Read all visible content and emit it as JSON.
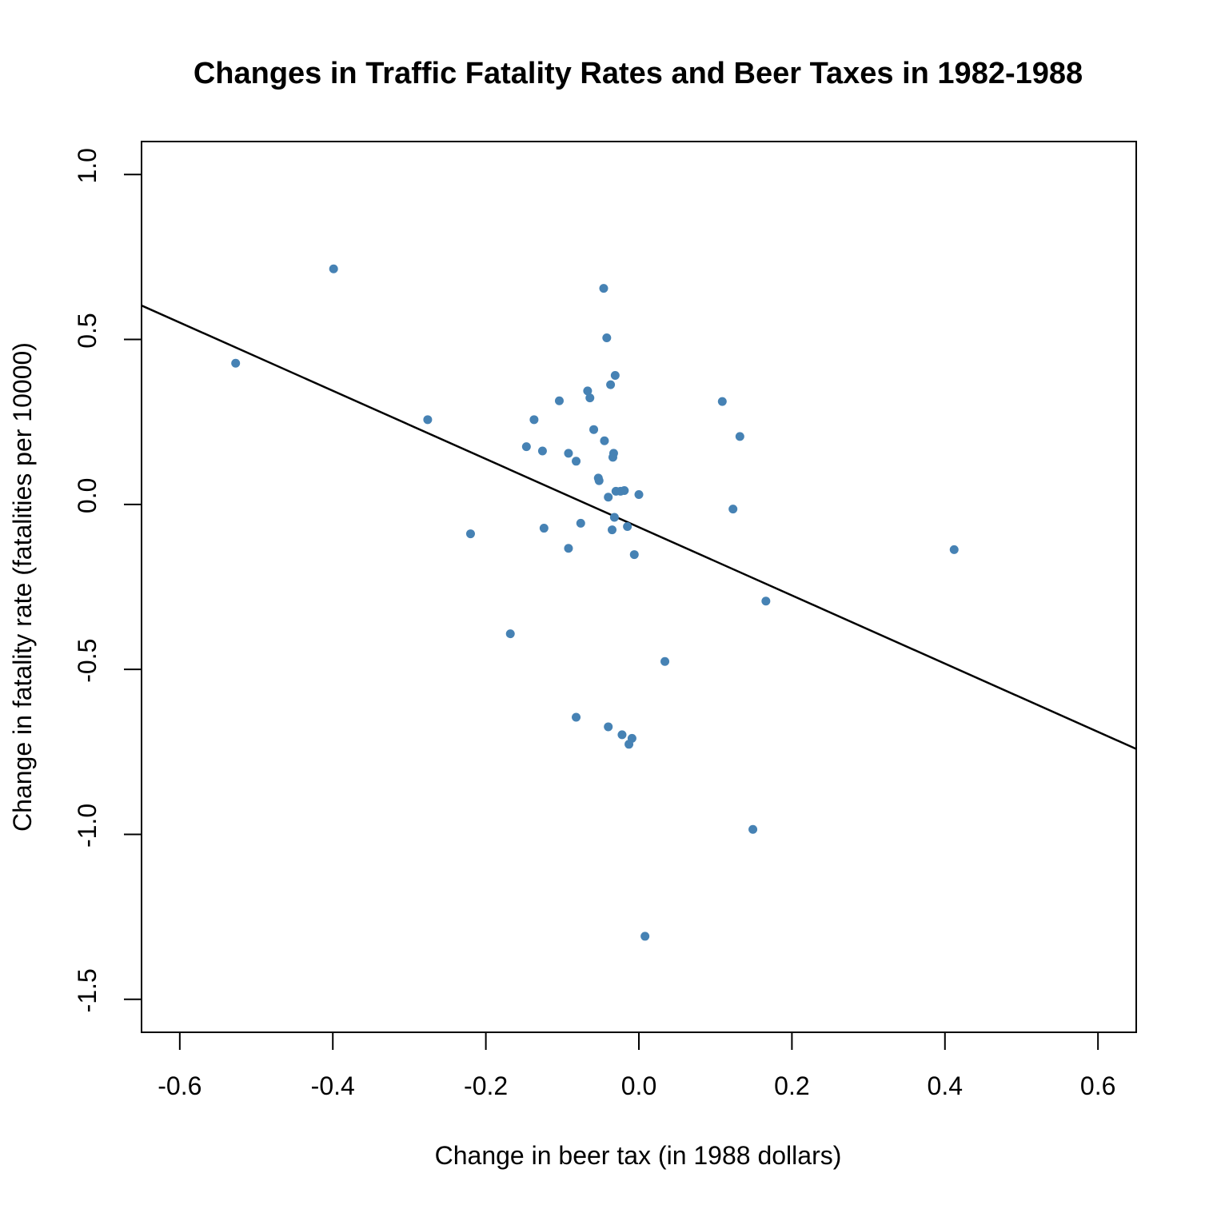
{
  "chart_data": {
    "type": "scatter",
    "title": "Changes in Traffic Fatality Rates and Beer Taxes in 1982-1988",
    "xlabel": "Change in beer tax (in 1988 dollars)",
    "ylabel": "Change in fatality rate (fatalities per 10000)",
    "xlim": [
      -0.65,
      0.65
    ],
    "ylim": [
      -1.6,
      1.1
    ],
    "x_ticks": [
      -0.6,
      -0.4,
      -0.2,
      0.0,
      0.2,
      0.4,
      0.6
    ],
    "x_tick_labels": [
      "-0.6",
      "-0.4",
      "-0.2",
      "0.0",
      "0.2",
      "0.4",
      "0.6"
    ],
    "y_ticks": [
      -1.5,
      -1.0,
      -0.5,
      0.0,
      0.5,
      1.0
    ],
    "y_tick_labels": [
      "-1.5",
      "-1.0",
      "-0.5",
      "0.0",
      "0.5",
      "1.0"
    ],
    "grid": false,
    "point_color": "#4682B4",
    "line_color": "#000000",
    "points": [
      {
        "x": -0.527,
        "y": 0.428
      },
      {
        "x": -0.399,
        "y": 0.714
      },
      {
        "x": -0.276,
        "y": 0.257
      },
      {
        "x": -0.22,
        "y": -0.089
      },
      {
        "x": -0.168,
        "y": -0.392
      },
      {
        "x": -0.147,
        "y": 0.175
      },
      {
        "x": -0.137,
        "y": 0.257
      },
      {
        "x": -0.126,
        "y": 0.162
      },
      {
        "x": -0.124,
        "y": -0.072
      },
      {
        "x": -0.104,
        "y": 0.314
      },
      {
        "x": -0.092,
        "y": 0.155
      },
      {
        "x": -0.092,
        "y": -0.133
      },
      {
        "x": -0.082,
        "y": 0.131
      },
      {
        "x": -0.082,
        "y": -0.645
      },
      {
        "x": -0.076,
        "y": -0.057
      },
      {
        "x": -0.067,
        "y": 0.344
      },
      {
        "x": -0.064,
        "y": 0.323
      },
      {
        "x": -0.059,
        "y": 0.227
      },
      {
        "x": -0.053,
        "y": 0.08
      },
      {
        "x": -0.052,
        "y": 0.072
      },
      {
        "x": -0.046,
        "y": 0.655
      },
      {
        "x": -0.045,
        "y": 0.193
      },
      {
        "x": -0.042,
        "y": 0.505
      },
      {
        "x": -0.04,
        "y": 0.022
      },
      {
        "x": -0.04,
        "y": -0.674
      },
      {
        "x": -0.037,
        "y": 0.363
      },
      {
        "x": -0.035,
        "y": -0.077
      },
      {
        "x": -0.034,
        "y": 0.143
      },
      {
        "x": -0.033,
        "y": 0.155
      },
      {
        "x": -0.032,
        "y": -0.039
      },
      {
        "x": -0.031,
        "y": 0.391
      },
      {
        "x": -0.03,
        "y": 0.04
      },
      {
        "x": -0.024,
        "y": 0.04
      },
      {
        "x": -0.022,
        "y": -0.698
      },
      {
        "x": -0.019,
        "y": 0.042
      },
      {
        "x": -0.015,
        "y": -0.067
      },
      {
        "x": -0.013,
        "y": -0.727
      },
      {
        "x": -0.009,
        "y": -0.709
      },
      {
        "x": -0.006,
        "y": -0.152
      },
      {
        "x": 0.0,
        "y": 0.03
      },
      {
        "x": 0.008,
        "y": -1.309
      },
      {
        "x": 0.034,
        "y": -0.476
      },
      {
        "x": 0.109,
        "y": 0.312
      },
      {
        "x": 0.123,
        "y": -0.014
      },
      {
        "x": 0.132,
        "y": 0.206
      },
      {
        "x": 0.149,
        "y": -0.985
      },
      {
        "x": 0.166,
        "y": -0.293
      },
      {
        "x": 0.412,
        "y": -0.137
      }
    ],
    "regression_line": {
      "x": [
        -0.65,
        0.65
      ],
      "y": [
        0.603,
        -0.741
      ]
    }
  }
}
